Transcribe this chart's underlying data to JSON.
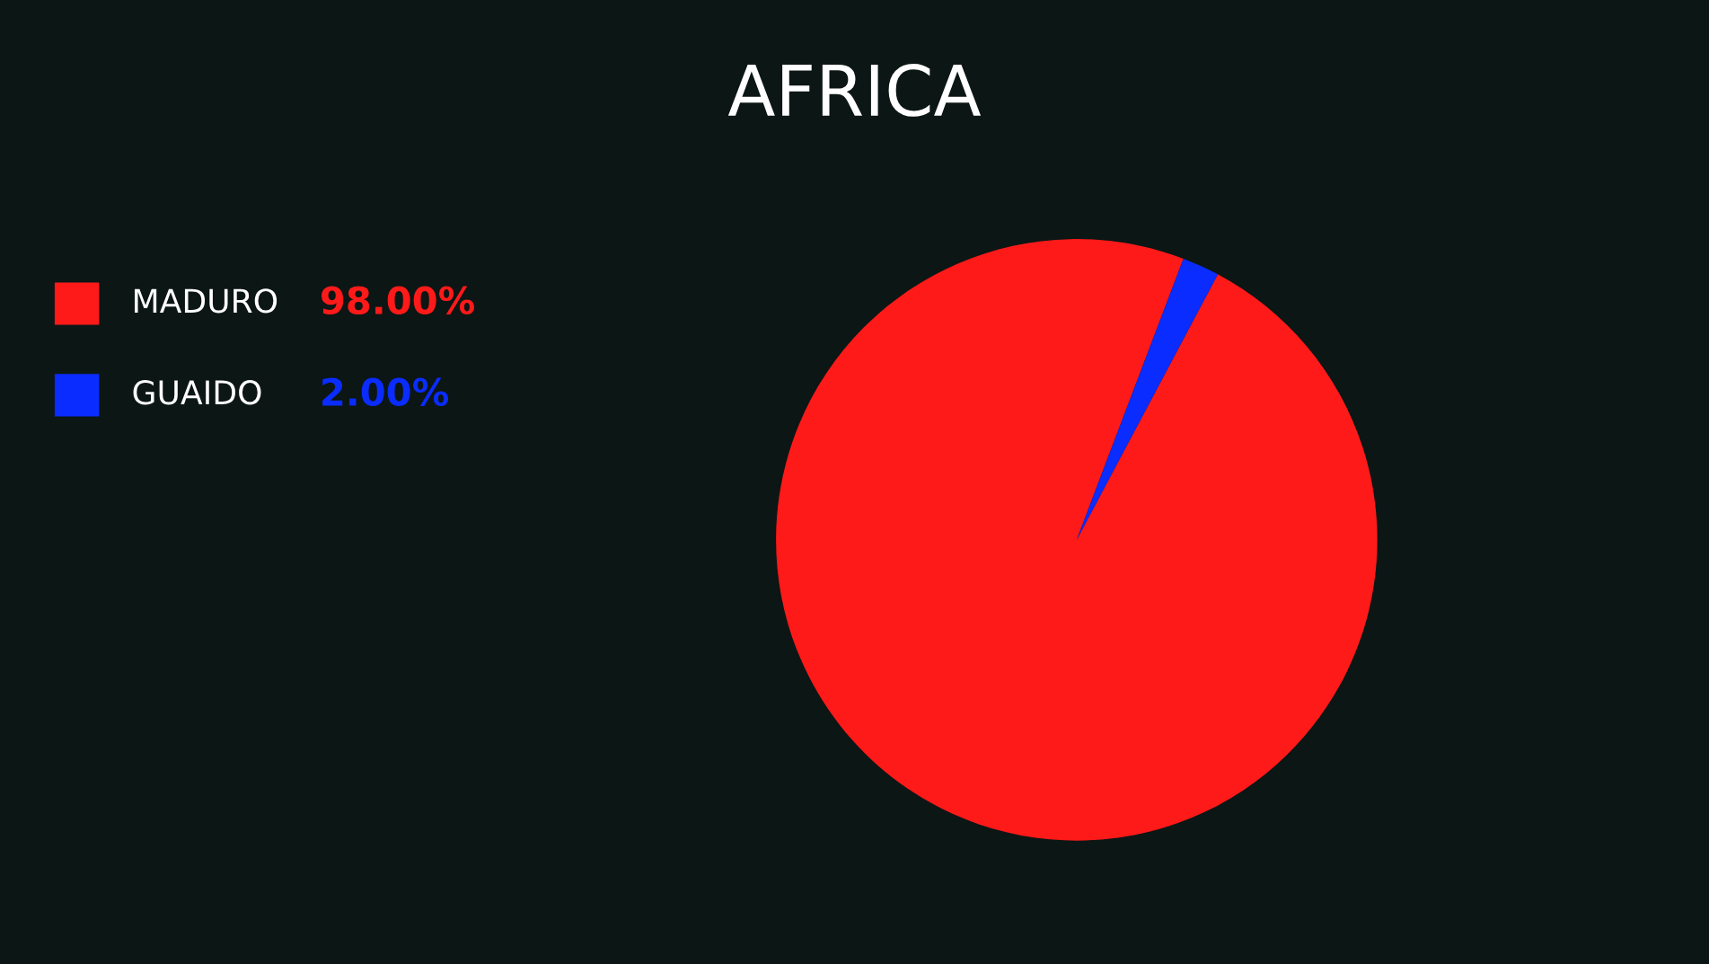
{
  "chart_data": {
    "type": "pie",
    "title": "AFRICA",
    "categories": [
      "MADURO",
      "GUAIDO"
    ],
    "values": [
      98,
      2
    ],
    "colors": [
      "#ff1a1a",
      "#0a2cff"
    ],
    "value_labels": [
      "98.00%",
      "2.00%"
    ],
    "legend": "left"
  }
}
